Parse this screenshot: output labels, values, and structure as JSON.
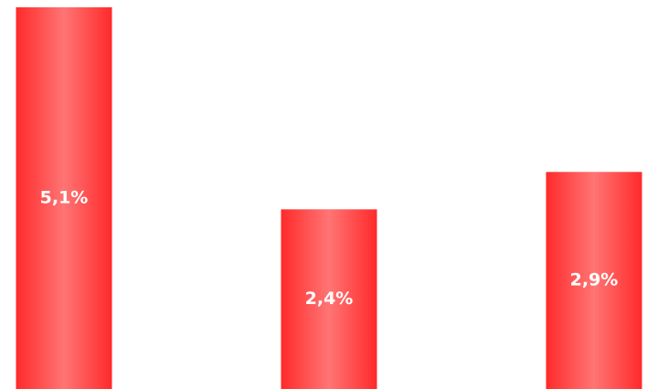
{
  "chart_data": {
    "type": "bar",
    "categories": [
      null,
      null,
      null
    ],
    "values": [
      5.1,
      2.4,
      2.9
    ],
    "value_labels": [
      "5,1%",
      "2,4%",
      "2,9%"
    ],
    "color": "#ff2a2a"
  }
}
